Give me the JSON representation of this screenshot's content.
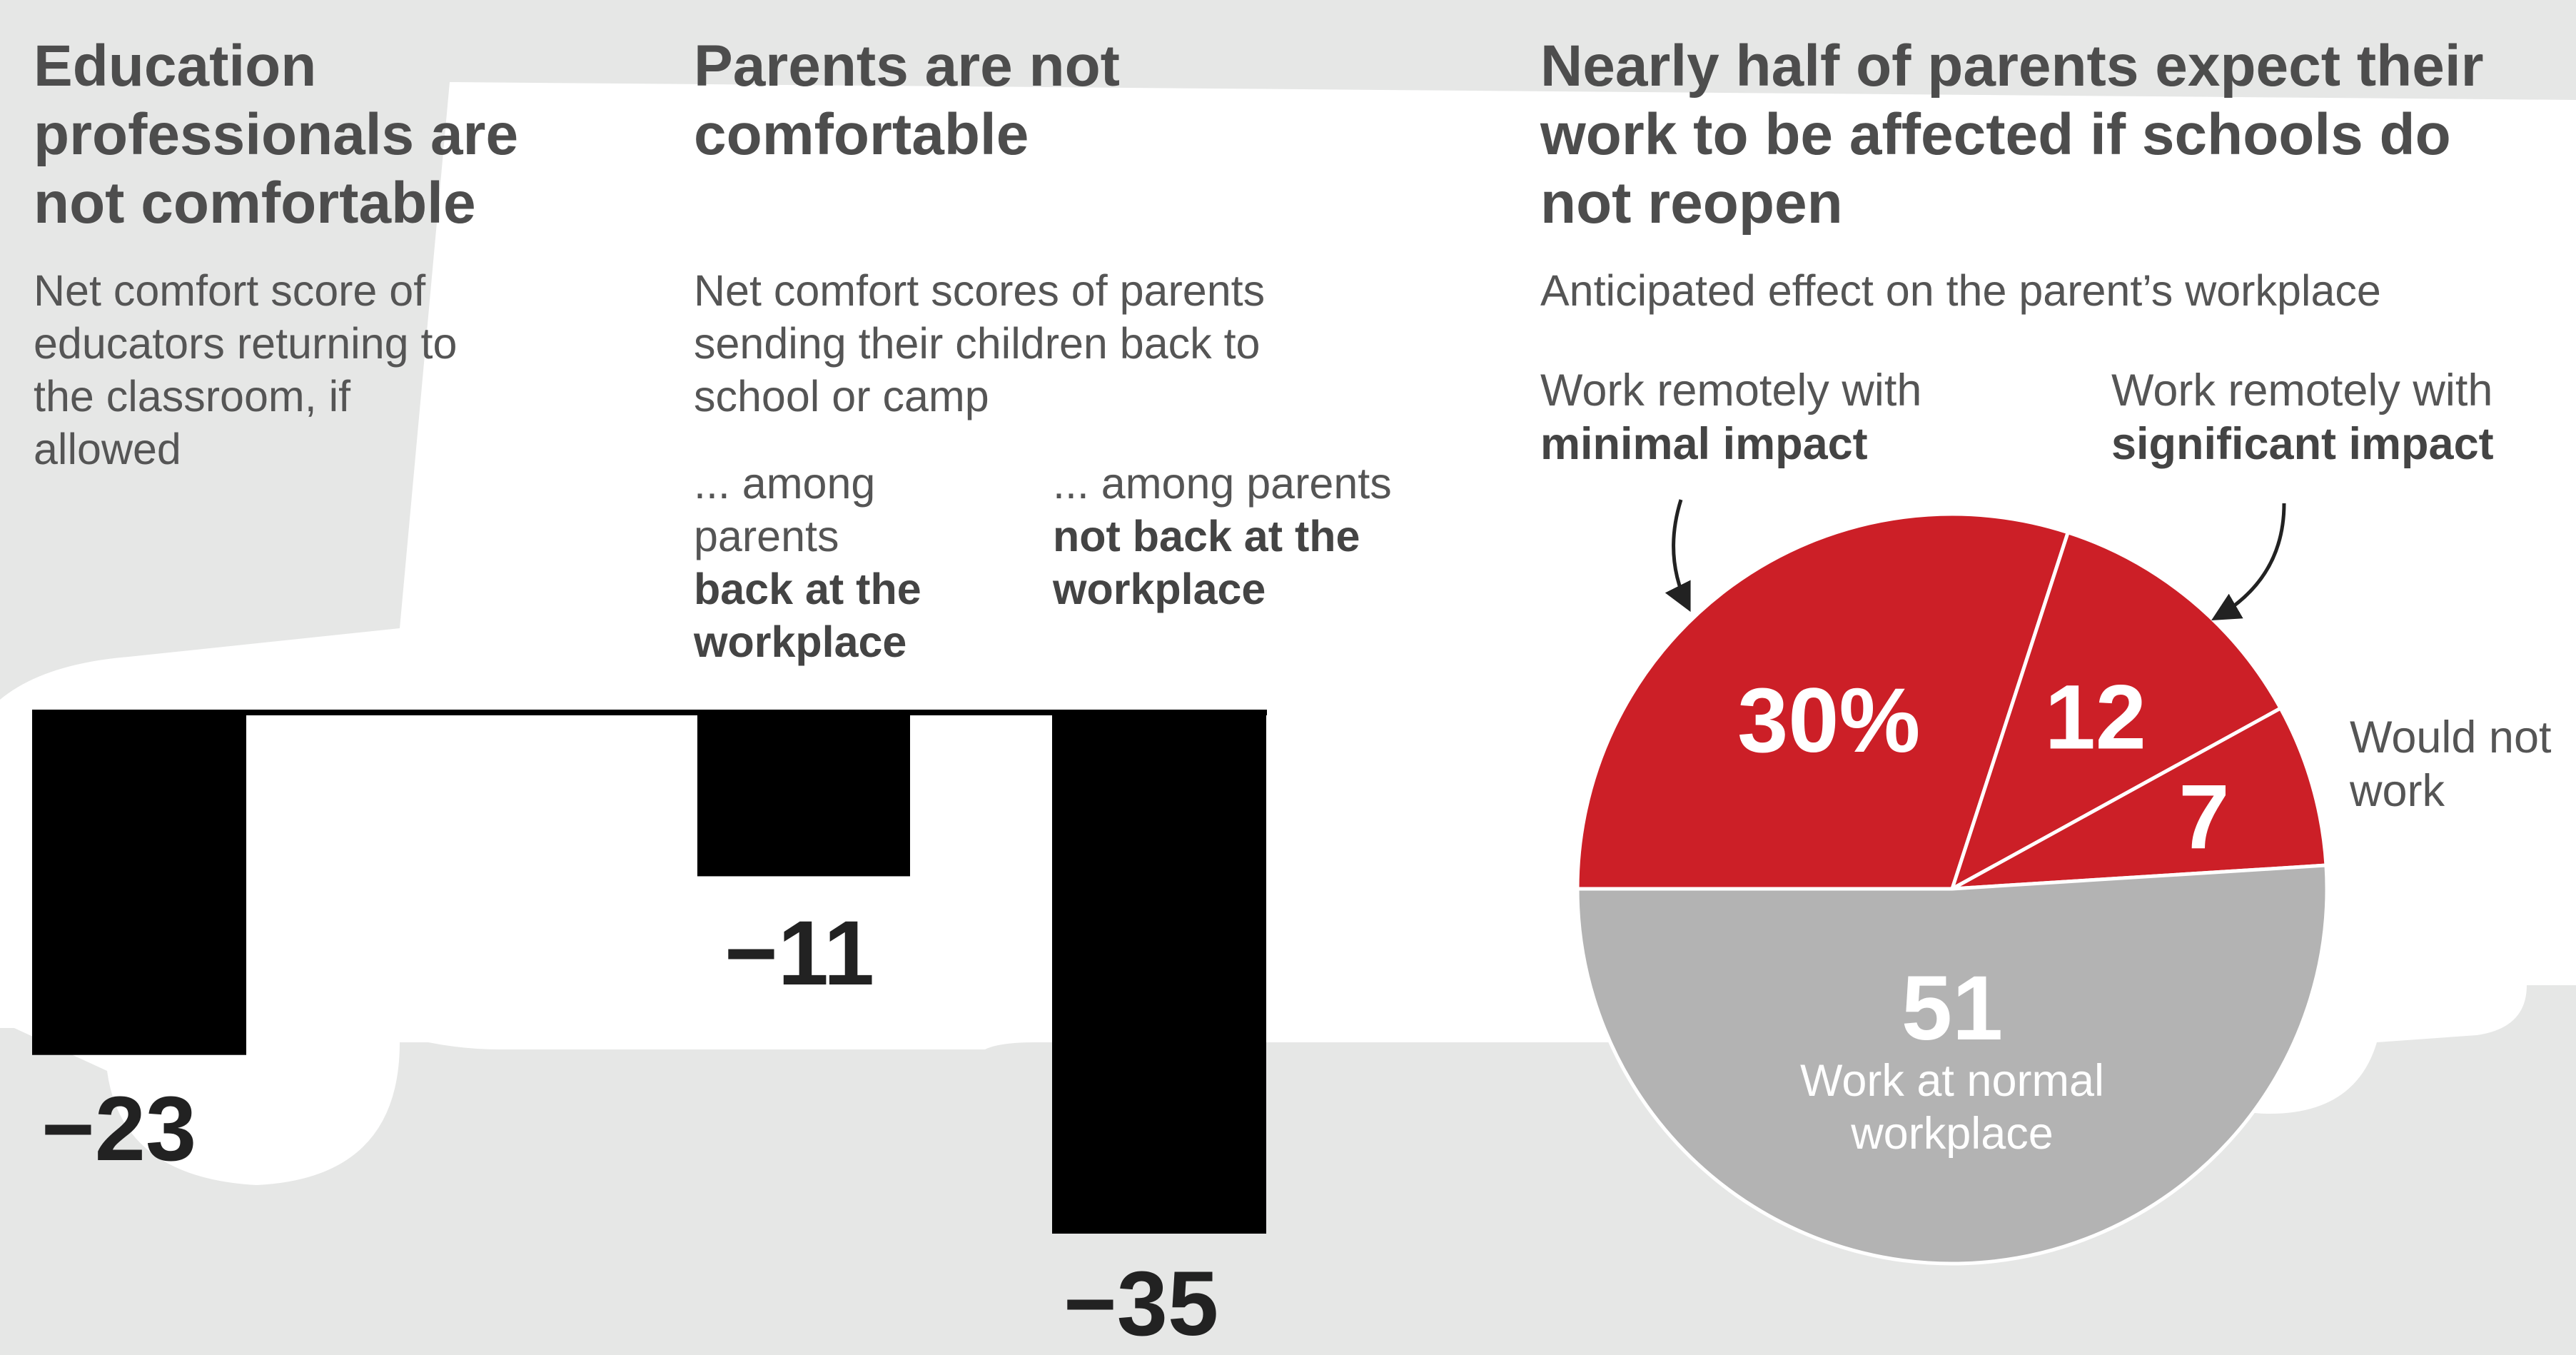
{
  "colors": {
    "background": "#e6e7e6",
    "bar": "#000000",
    "pie_red": "#cc1f27",
    "pie_gray": "#b3b3b3",
    "silhouette": "#ffffff"
  },
  "educators": {
    "title": "Education professionals are not comfortable",
    "subtitle": "Net comfort score of educators returning to the classroom, if allowed"
  },
  "parents": {
    "title": "Parents are not comfortable",
    "subtitle": "Net comfort scores of parents sending their children back to school or camp",
    "group_back": {
      "prefix": "... among parents",
      "emphasis": "back at the workplace"
    },
    "group_not_back": {
      "prefix": "... among parents",
      "emphasis": "not back at the workplace"
    }
  },
  "workplace": {
    "title": "Nearly half of parents expect their work to be affected if schools do not reopen",
    "subtitle": "Anticipated effect on the parent’s workplace",
    "ann_minimal": {
      "prefix": "Work remotely with",
      "emphasis": "minimal impact"
    },
    "ann_significant": {
      "prefix": "Work remotely with",
      "emphasis": "significant impact"
    },
    "ann_not_work": "Would not work",
    "ann_normal": "Work at normal workplace"
  },
  "chart_data": [
    {
      "type": "bar",
      "categories": [
        "Educators"
      ],
      "values": [
        -23
      ],
      "value_labels": [
        "−23"
      ],
      "ylim": [
        -35,
        0
      ]
    },
    {
      "type": "bar",
      "categories": [
        "... among parents back at the workplace",
        "... among parents not back at the workplace"
      ],
      "values": [
        -11,
        -35
      ],
      "value_labels": [
        "−11",
        "−35"
      ],
      "ylim": [
        -35,
        0
      ]
    },
    {
      "type": "pie",
      "categories": [
        "Work remotely with minimal impact",
        "Work remotely with significant impact",
        "Would not work",
        "Work at normal workplace"
      ],
      "values": [
        30,
        12,
        7,
        51
      ],
      "value_labels": [
        "30%",
        "12",
        "7",
        "51"
      ],
      "colors": [
        "#cc1f27",
        "#cc1f27",
        "#cc1f27",
        "#b3b3b3"
      ]
    }
  ]
}
